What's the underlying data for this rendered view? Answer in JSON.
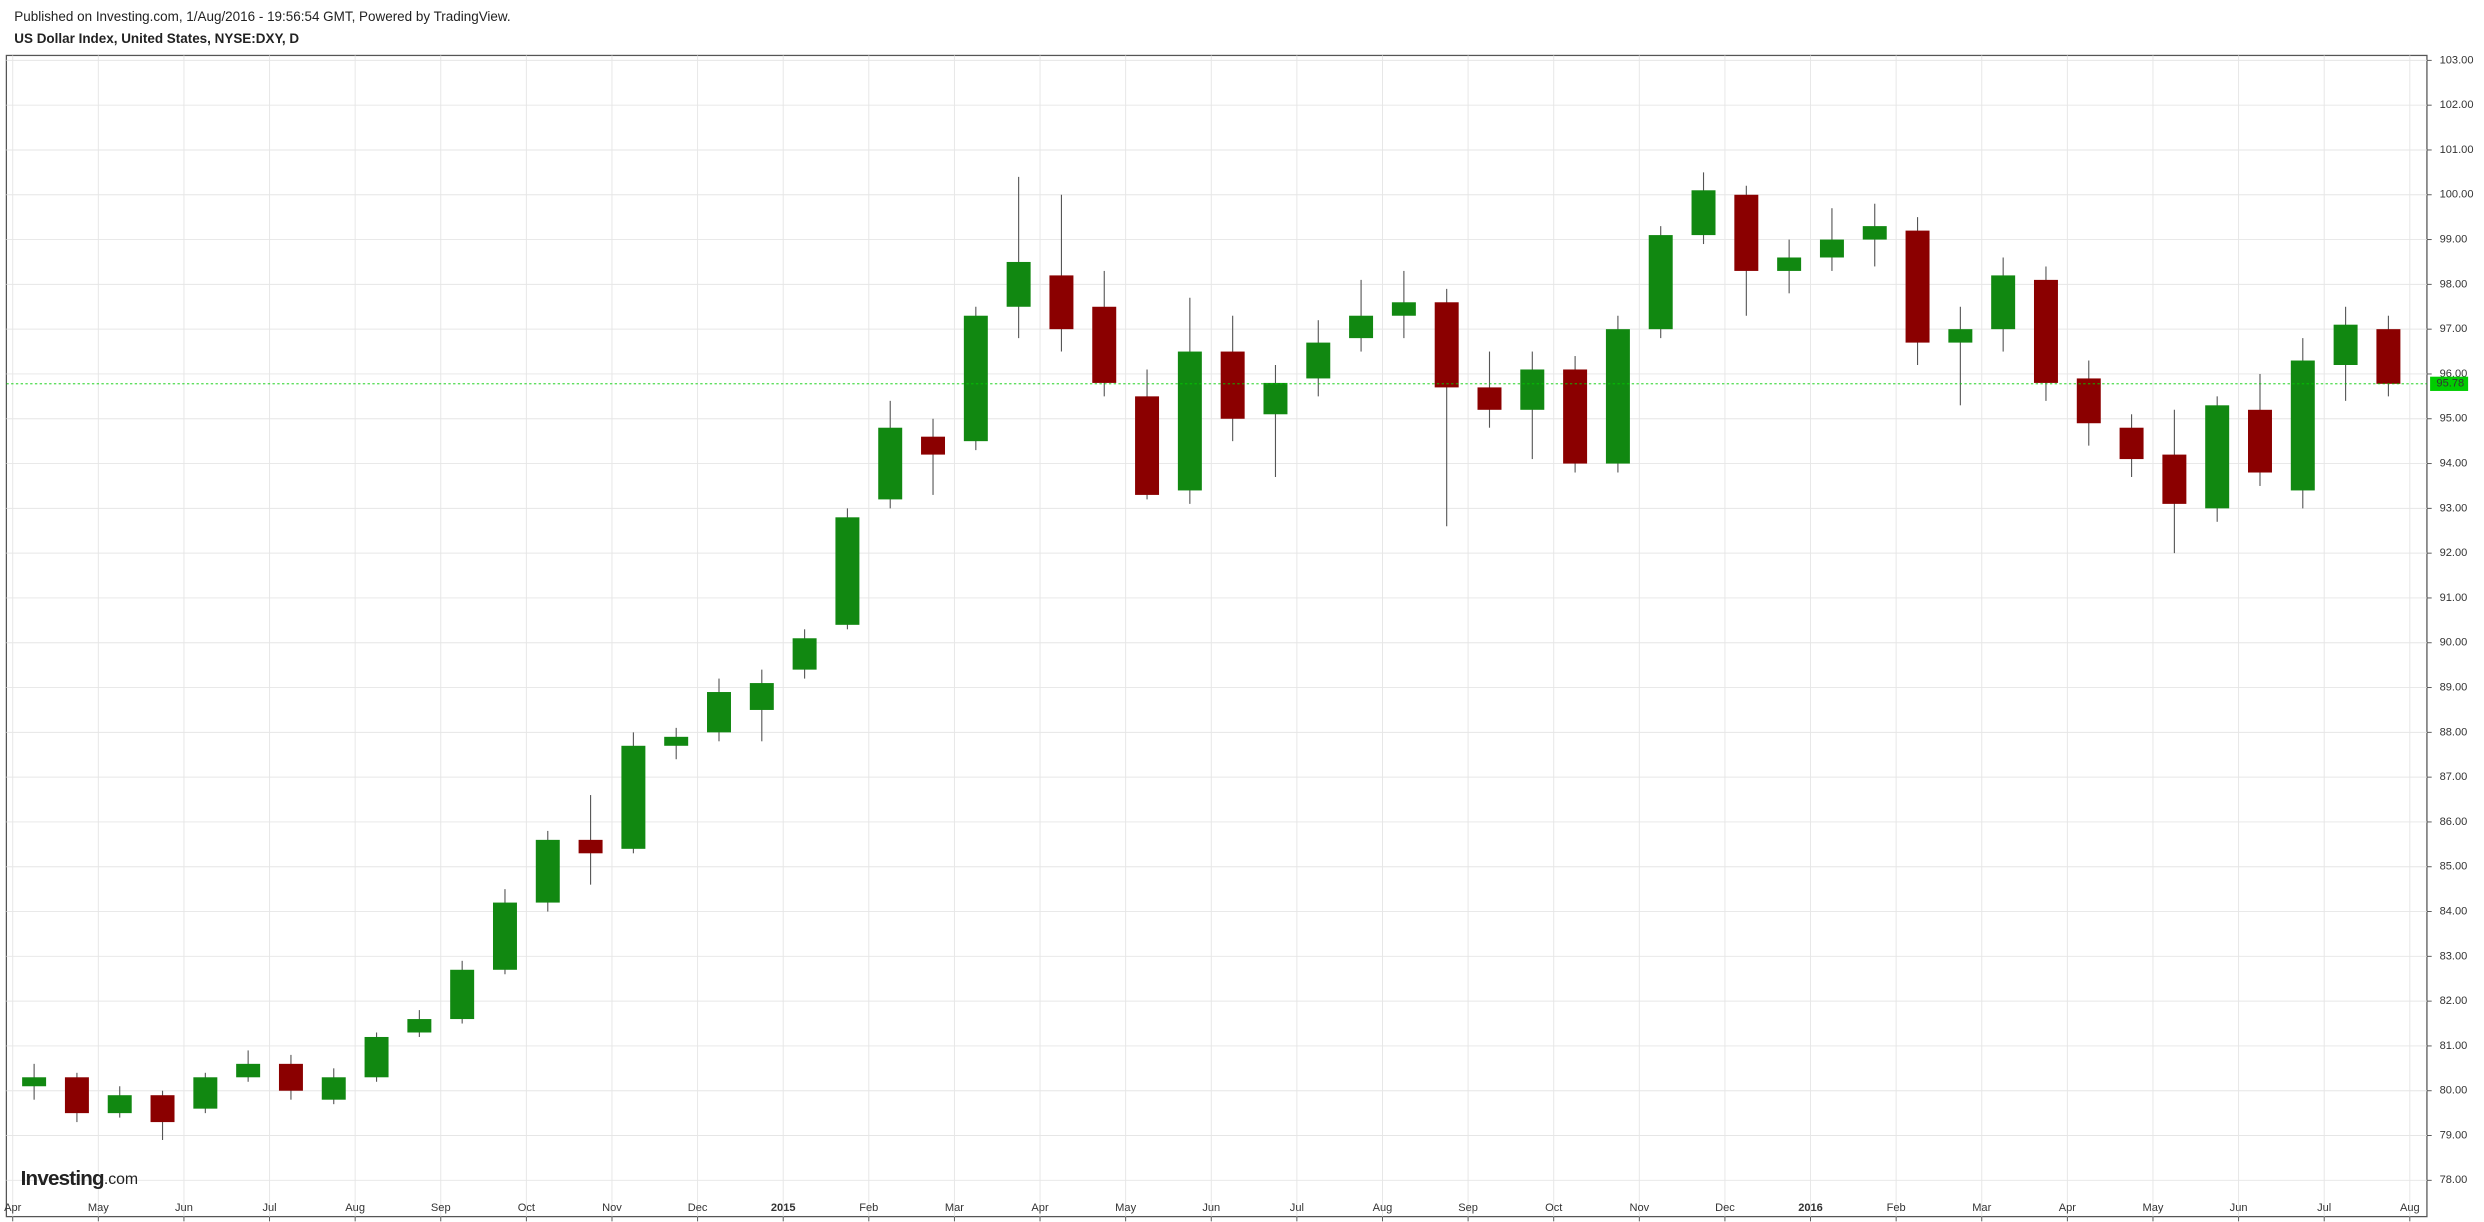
{
  "header": {
    "published": "Published on Investing.com, 1/Aug/2016 - 19:56:54 GMT, Powered by TradingView.",
    "symbol": "US Dollar Index, United States, NYSE:DXY, D"
  },
  "logo": {
    "brand": "Investing",
    "suffix": ".com"
  },
  "chart_data": {
    "type": "candlestick",
    "up_color": "#118811",
    "down_color": "#8b0000",
    "wick_color": "#555555",
    "grid": true,
    "last_price": 95.78,
    "last_price_color": "#00cc00",
    "xlim": [
      -0.074,
      28.2
    ],
    "ylim": [
      77.19,
      103.11
    ],
    "xticks": [
      {
        "value": 0,
        "label": "Apr"
      },
      {
        "value": 1,
        "label": "May"
      },
      {
        "value": 2,
        "label": "Jun"
      },
      {
        "value": 3,
        "label": "Jul"
      },
      {
        "value": 4,
        "label": "Aug"
      },
      {
        "value": 5,
        "label": "Sep"
      },
      {
        "value": 6,
        "label": "Oct"
      },
      {
        "value": 7,
        "label": "Nov"
      },
      {
        "value": 8,
        "label": "Dec"
      },
      {
        "value": 9,
        "label": "2015"
      },
      {
        "value": 10,
        "label": "Feb"
      },
      {
        "value": 11,
        "label": "Mar"
      },
      {
        "value": 12,
        "label": "Apr"
      },
      {
        "value": 13,
        "label": "May"
      },
      {
        "value": 14,
        "label": "Jun"
      },
      {
        "value": 15,
        "label": "Jul"
      },
      {
        "value": 16,
        "label": "Aug"
      },
      {
        "value": 17,
        "label": "Sep"
      },
      {
        "value": 18,
        "label": "Oct"
      },
      {
        "value": 19,
        "label": "Nov"
      },
      {
        "value": 20,
        "label": "Dec"
      },
      {
        "value": 21,
        "label": "2016"
      },
      {
        "value": 22,
        "label": "Feb"
      },
      {
        "value": 23,
        "label": "Mar"
      },
      {
        "value": 24,
        "label": "Apr"
      },
      {
        "value": 25,
        "label": "May"
      },
      {
        "value": 26,
        "label": "Jun"
      },
      {
        "value": 27,
        "label": "Jul"
      },
      {
        "value": 28,
        "label": "Aug"
      }
    ],
    "yticks": [
      {
        "value": 78,
        "label": "78.00"
      },
      {
        "value": 79,
        "label": "79.00"
      },
      {
        "value": 80,
        "label": "80.00"
      },
      {
        "value": 81,
        "label": "81.00"
      },
      {
        "value": 82,
        "label": "82.00"
      },
      {
        "value": 83,
        "label": "83.00"
      },
      {
        "value": 84,
        "label": "84.00"
      },
      {
        "value": 85,
        "label": "85.00"
      },
      {
        "value": 86,
        "label": "86.00"
      },
      {
        "value": 87,
        "label": "87.00"
      },
      {
        "value": 88,
        "label": "88.00"
      },
      {
        "value": 89,
        "label": "89.00"
      },
      {
        "value": 90,
        "label": "90.00"
      },
      {
        "value": 91,
        "label": "91.00"
      },
      {
        "value": 92,
        "label": "92.00"
      },
      {
        "value": 93,
        "label": "93.00"
      },
      {
        "value": 94,
        "label": "94.00"
      },
      {
        "value": 95,
        "label": "95.00"
      },
      {
        "value": 96,
        "label": "96.00"
      },
      {
        "value": 97,
        "label": "97.00"
      },
      {
        "value": 98,
        "label": "98.00"
      },
      {
        "value": 99,
        "label": "99.00"
      },
      {
        "value": 100,
        "label": "100.00"
      },
      {
        "value": 101,
        "label": "101.00"
      },
      {
        "value": 102,
        "label": "102.00"
      },
      {
        "value": 103,
        "label": "103.00"
      }
    ],
    "x": [
      0.25,
      0.75,
      1.25,
      1.75,
      2.25,
      2.75,
      3.25,
      3.75,
      4.25,
      4.75,
      5.25,
      5.75,
      6.25,
      6.75,
      7.25,
      7.75,
      8.25,
      8.75,
      9.25,
      9.75,
      10.25,
      10.75,
      11.25,
      11.75,
      12.25,
      12.75,
      13.25,
      13.75,
      14.25,
      14.75,
      15.25,
      15.75,
      16.25,
      16.75,
      17.25,
      17.75,
      18.25,
      18.75,
      19.25,
      19.75,
      20.25,
      20.75,
      21.25,
      21.75,
      22.25,
      22.75,
      23.25,
      23.75,
      24.25,
      24.75,
      25.25,
      25.75,
      26.25,
      26.75,
      27.25,
      27.75
    ],
    "open": [
      80.1,
      80.3,
      79.5,
      79.9,
      79.6,
      80.3,
      80.6,
      79.8,
      80.3,
      81.3,
      81.6,
      82.7,
      84.2,
      85.6,
      85.4,
      87.7,
      88.0,
      88.5,
      89.4,
      90.4,
      93.2,
      94.6,
      94.5,
      97.5,
      98.2,
      97.5,
      95.5,
      93.4,
      96.5,
      95.1,
      95.9,
      96.8,
      97.3,
      97.6,
      95.7,
      95.2,
      96.1,
      94.0,
      97.0,
      99.1,
      100.0,
      98.3,
      98.6,
      99.0,
      99.2,
      96.7,
      97.0,
      98.1,
      95.9,
      94.8,
      94.2,
      93.0,
      95.2,
      93.4,
      96.2,
      97.0
    ],
    "high": [
      80.6,
      80.4,
      80.1,
      80.0,
      80.4,
      80.9,
      80.8,
      80.5,
      81.3,
      81.8,
      82.9,
      84.5,
      85.8,
      86.6,
      88.0,
      88.1,
      89.2,
      89.4,
      90.3,
      93.0,
      95.4,
      95.0,
      97.5,
      100.4,
      100.0,
      98.3,
      96.1,
      97.7,
      97.3,
      96.2,
      97.2,
      98.1,
      98.3,
      97.9,
      96.5,
      96.5,
      96.4,
      97.3,
      99.3,
      100.5,
      100.2,
      99.0,
      99.7,
      99.8,
      99.5,
      97.5,
      98.6,
      98.4,
      96.3,
      95.1,
      95.2,
      95.5,
      96.0,
      96.8,
      97.5,
      97.3
    ],
    "low": [
      79.8,
      79.3,
      79.4,
      78.9,
      79.5,
      80.2,
      79.8,
      79.7,
      80.2,
      81.2,
      81.5,
      82.6,
      84.0,
      84.6,
      85.3,
      87.4,
      87.8,
      87.8,
      89.2,
      90.3,
      93.0,
      93.3,
      94.3,
      96.8,
      96.5,
      95.5,
      93.2,
      93.1,
      94.5,
      93.7,
      95.5,
      96.5,
      96.8,
      92.6,
      94.8,
      94.1,
      93.8,
      93.8,
      96.8,
      98.9,
      97.3,
      97.8,
      98.3,
      98.4,
      96.2,
      95.3,
      96.5,
      95.4,
      94.4,
      93.7,
      92.0,
      92.7,
      93.5,
      93.0,
      95.4,
      95.5
    ],
    "close": [
      80.3,
      79.5,
      79.9,
      79.3,
      80.3,
      80.6,
      80.0,
      80.3,
      81.2,
      81.6,
      82.7,
      84.2,
      85.6,
      85.3,
      87.7,
      87.9,
      88.9,
      89.1,
      90.1,
      92.8,
      94.8,
      94.2,
      97.3,
      98.5,
      97.0,
      95.8,
      93.3,
      96.5,
      95.0,
      95.8,
      96.7,
      97.3,
      97.6,
      95.7,
      95.2,
      96.1,
      94.0,
      97.0,
      99.1,
      100.1,
      98.3,
      98.6,
      99.0,
      99.3,
      96.7,
      97.0,
      98.2,
      95.8,
      94.9,
      94.1,
      93.1,
      95.3,
      93.8,
      96.3,
      97.1,
      95.78
    ]
  }
}
